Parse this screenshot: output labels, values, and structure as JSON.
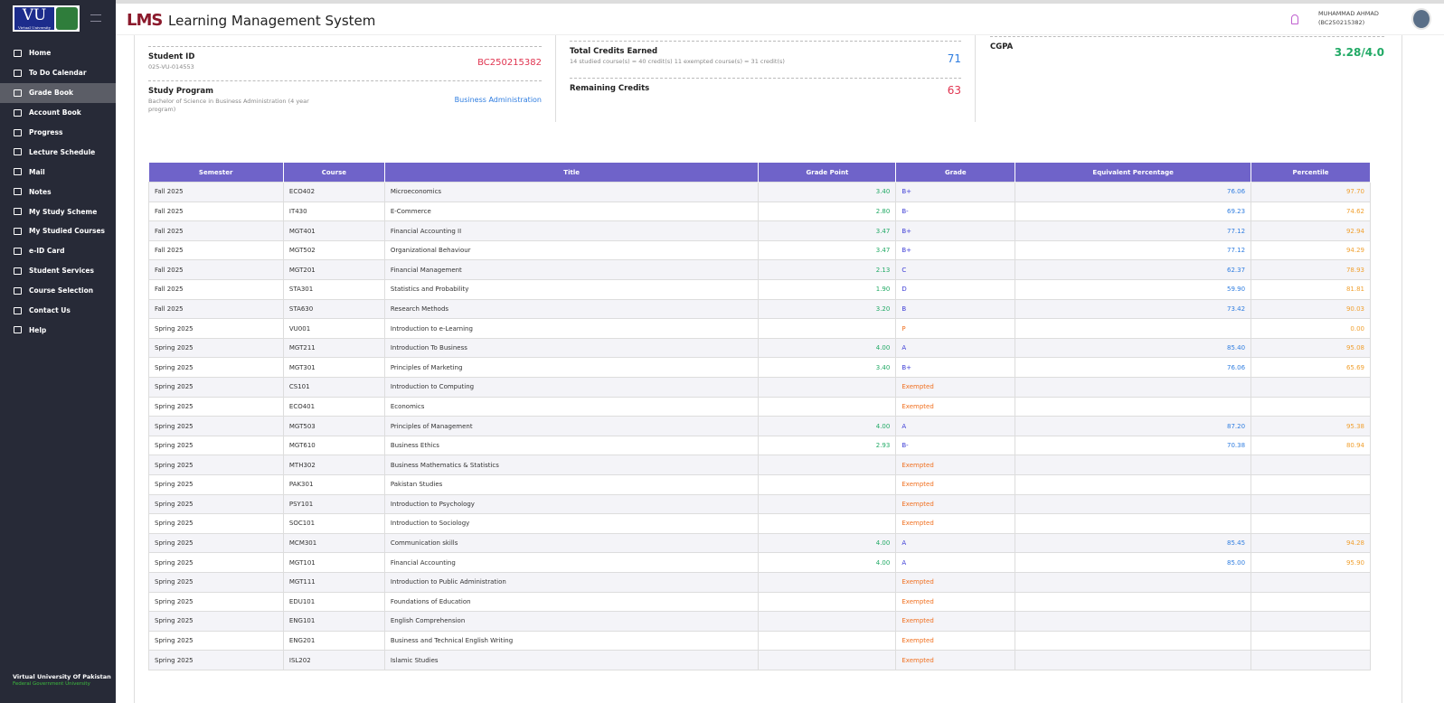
{
  "header": {
    "logo": "VU",
    "logo_caption": "Virtual University",
    "app_logo": "LMS",
    "title": "Learning Management System",
    "user_name": "MUHAMMAD AHMAD",
    "user_id": "(BC250215382)"
  },
  "sidebar": {
    "items": [
      "Home",
      "To Do Calendar",
      "Grade Book",
      "Account Book",
      "Progress",
      "Lecture Schedule",
      "Mail",
      "Notes",
      "My Study Scheme",
      "My Studied Courses",
      "e-ID Card",
      "Student Services",
      "Course Selection",
      "Contact Us",
      "Help"
    ],
    "active_index": 2
  },
  "footer": {
    "name": "Virtual University Of Pakistan",
    "caption": "Federal Government University"
  },
  "summary": {
    "student_id": {
      "label": "Student ID",
      "sub": "025-VU-014553",
      "value": "BC250215382"
    },
    "study_program": {
      "label": "Study Program",
      "sub": "Bachelor of Science in Business Administration (4 year program)",
      "value": "Business Administration"
    },
    "total_credits": {
      "label": "Total Credits Earned",
      "sub": "14 studied course(s) = 40 credit(s) 11 exempted course(s) = 31 credit(s)",
      "value": 71
    },
    "remaining_credits": {
      "label": "Remaining Credits",
      "value": 63
    },
    "cgpa": {
      "label": "CGPA",
      "value": "3.28/4.0"
    }
  },
  "table": {
    "columns": [
      "Semester",
      "Course",
      "Title",
      "Grade Point",
      "Grade",
      "Equivalent Percentage",
      "Percentile"
    ],
    "rows": [
      [
        "Fall 2025",
        "ECO402",
        "Microeconomics",
        "3.40",
        "B+",
        "76.06",
        "97.70"
      ],
      [
        "Fall 2025",
        "IT430",
        "E-Commerce",
        "2.80",
        "B-",
        "69.23",
        "74.62"
      ],
      [
        "Fall 2025",
        "MGT401",
        "Financial Accounting II",
        "3.47",
        "B+",
        "77.12",
        "92.94"
      ],
      [
        "Fall 2025",
        "MGT502",
        "Organizational Behaviour",
        "3.47",
        "B+",
        "77.12",
        "94.29"
      ],
      [
        "Fall 2025",
        "MGT201",
        "Financial Management",
        "2.13",
        "C",
        "62.37",
        "78.93"
      ],
      [
        "Fall 2025",
        "STA301",
        "Statistics and Probability",
        "1.90",
        "D",
        "59.90",
        "81.81"
      ],
      [
        "Fall 2025",
        "STA630",
        "Research Methods",
        "3.20",
        "B",
        "73.42",
        "90.03"
      ],
      [
        "Spring 2025",
        "VU001",
        "Introduction to e-Learning",
        null,
        "P",
        null,
        "0.00"
      ],
      [
        "Spring 2025",
        "MGT211",
        "Introduction To Business",
        "4.00",
        "A",
        "85.40",
        "95.08"
      ],
      [
        "Spring 2025",
        "MGT301",
        "Principles of Marketing",
        "3.40",
        "B+",
        "76.06",
        "65.69"
      ],
      [
        "Spring 2025",
        "CS101",
        "Introduction to Computing",
        null,
        "Exempted",
        null,
        null
      ],
      [
        "Spring 2025",
        "ECO401",
        "Economics",
        null,
        "Exempted",
        null,
        null
      ],
      [
        "Spring 2025",
        "MGT503",
        "Principles of Management",
        "4.00",
        "A",
        "87.20",
        "95.38"
      ],
      [
        "Spring 2025",
        "MGT610",
        "Business Ethics",
        "2.93",
        "B-",
        "70.38",
        "80.94"
      ],
      [
        "Spring 2025",
        "MTH302",
        "Business Mathematics & Statistics",
        null,
        "Exempted",
        null,
        null
      ],
      [
        "Spring 2025",
        "PAK301",
        "Pakistan Studies",
        null,
        "Exempted",
        null,
        null
      ],
      [
        "Spring 2025",
        "PSY101",
        "Introduction to Psychology",
        null,
        "Exempted",
        null,
        null
      ],
      [
        "Spring 2025",
        "SOC101",
        "Introduction to Sociology",
        null,
        "Exempted",
        null,
        null
      ],
      [
        "Spring 2025",
        "MCM301",
        "Communication skills",
        "4.00",
        "A",
        "85.45",
        "94.28"
      ],
      [
        "Spring 2025",
        "MGT101",
        "Financial Accounting",
        "4.00",
        "A",
        "85.00",
        "95.90"
      ],
      [
        "Spring 2025",
        "MGT111",
        "Introduction to Public Administration",
        null,
        "Exempted",
        null,
        null
      ],
      [
        "Spring 2025",
        "EDU101",
        "Foundations of Education",
        null,
        "Exempted",
        null,
        null
      ],
      [
        "Spring 2025",
        "ENG101",
        "English Comprehension",
        null,
        "Exempted",
        null,
        null
      ],
      [
        "Spring 2025",
        "ENG201",
        "Business and Technical English Writing",
        null,
        "Exempted",
        null,
        null
      ],
      [
        "Spring 2025",
        "ISL202",
        "Islamic Studies",
        null,
        "Exempted",
        null,
        null
      ]
    ]
  }
}
